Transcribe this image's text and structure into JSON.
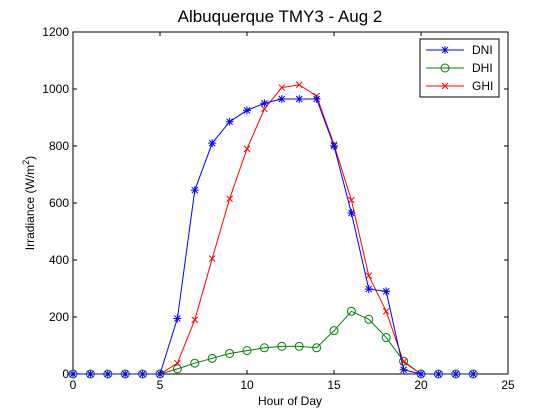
{
  "chart_data": {
    "type": "line",
    "title": "Albuquerque TMY3 - Aug 2",
    "xlabel": "Hour of Day",
    "ylabel_text": "Irradiance (W/m",
    "ylabel_sup": "2",
    "ylabel_close": ")",
    "xlim": [
      0,
      25
    ],
    "ylim": [
      0,
      1200
    ],
    "xticks": [
      0,
      5,
      10,
      15,
      20,
      25
    ],
    "yticks": [
      0,
      200,
      400,
      600,
      800,
      1000,
      1200
    ],
    "grid": false,
    "legend_position": "top-right",
    "x": [
      0,
      1,
      2,
      3,
      4,
      5,
      6,
      7,
      8,
      9,
      10,
      11,
      12,
      13,
      14,
      15,
      16,
      17,
      18,
      19,
      20,
      21,
      22,
      23
    ],
    "series": [
      {
        "name": "DNI",
        "color": "#0000ff",
        "marker": "asterisk",
        "values": [
          0,
          0,
          0,
          0,
          0,
          0,
          195,
          645,
          810,
          885,
          925,
          950,
          965,
          965,
          965,
          800,
          565,
          298,
          290,
          15,
          0,
          0,
          0,
          0
        ]
      },
      {
        "name": "DHI",
        "color": "#008000",
        "marker": "circle",
        "values": [
          0,
          0,
          0,
          0,
          0,
          0,
          18,
          38,
          55,
          72,
          82,
          92,
          97,
          97,
          92,
          152,
          220,
          192,
          128,
          45,
          0,
          0,
          0,
          0
        ]
      },
      {
        "name": "GHI",
        "color": "#ff0000",
        "marker": "x",
        "values": [
          0,
          0,
          0,
          0,
          0,
          0,
          38,
          190,
          405,
          615,
          790,
          930,
          1005,
          1015,
          975,
          805,
          610,
          345,
          220,
          42,
          0,
          0,
          0,
          0
        ]
      }
    ]
  }
}
